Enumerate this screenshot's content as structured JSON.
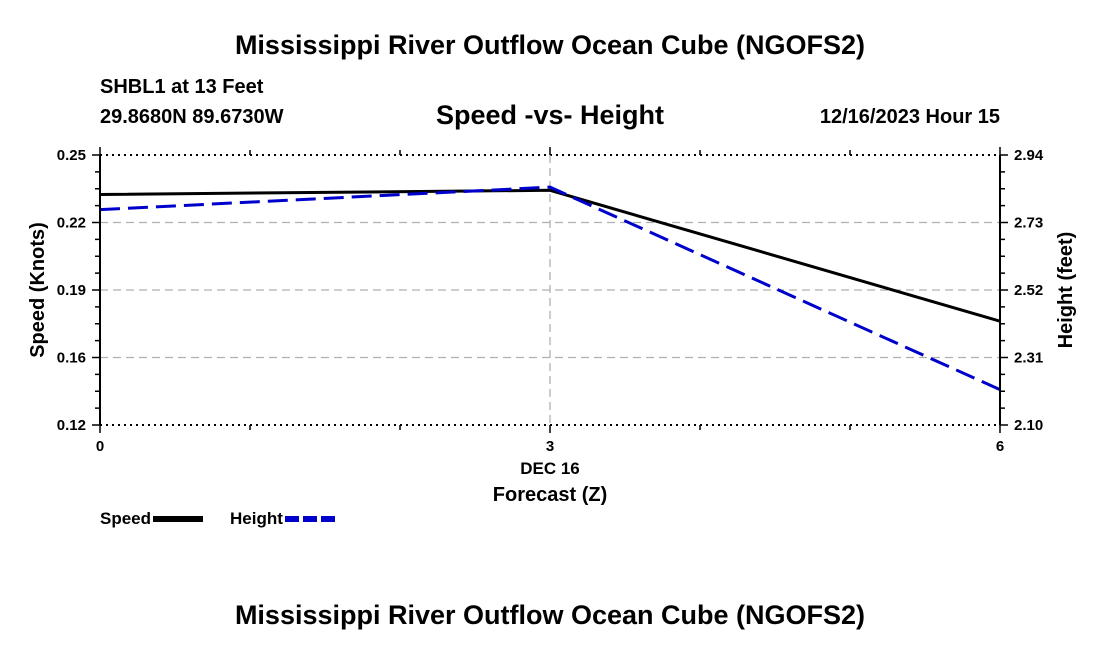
{
  "header": {
    "title": "Mississippi River Outflow Ocean Cube (NGOFS2)",
    "station": "SHBL1 at 13 Feet",
    "coords": "29.8680N  89.6730W",
    "subtitle": "Speed -vs- Height",
    "datetime": "12/16/2023 Hour 15"
  },
  "footer": {
    "title": "Mississippi River Outflow Ocean Cube (NGOFS2)"
  },
  "colors": {
    "speed": "#000000",
    "height": "#0000cc",
    "grid": "#b0b0b0"
  },
  "chart_data": {
    "type": "line",
    "title": "Speed -vs- Height",
    "xlabel": "Forecast (Z)",
    "x_date_label": "DEC 16",
    "ylabel": "Speed (Knots)",
    "y2label": "Height (feet)",
    "x": [
      0,
      3,
      6
    ],
    "xlim": [
      0,
      6
    ],
    "x_ticks": [
      "0",
      "3",
      "6"
    ],
    "ylim": [
      0.12,
      0.25
    ],
    "y_ticks": [
      "0.25",
      "0.22",
      "0.19",
      "0.16",
      "0.12"
    ],
    "y2lim": [
      2.1,
      2.94
    ],
    "y2_ticks": [
      "2.94",
      "2.73",
      "2.52",
      "2.31",
      "2.10"
    ],
    "series": [
      {
        "name": "Speed",
        "axis": "left",
        "style": "solid",
        "values": [
          0.231,
          0.233,
          0.17
        ]
      },
      {
        "name": "Height",
        "axis": "right",
        "style": "dashed",
        "values": [
          2.77,
          2.84,
          2.21
        ]
      }
    ],
    "legend": [
      {
        "label": "Speed"
      },
      {
        "label": "Height"
      }
    ]
  }
}
